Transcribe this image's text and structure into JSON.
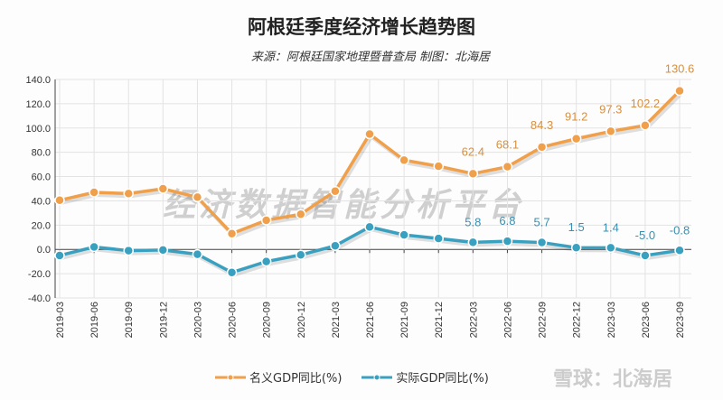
{
  "chart_data": {
    "type": "line",
    "title": "阿根廷季度经济增长趋势图",
    "subtitle": "来源：阿根廷国家地理暨普查局 制图：北海居",
    "categories": [
      "2019-03",
      "2019-06",
      "2019-09",
      "2019-12",
      "2020-03",
      "2020-06",
      "2020-09",
      "2020-12",
      "2021-03",
      "2021-06",
      "2021-09",
      "2021-12",
      "2022-03",
      "2022-06",
      "2022-09",
      "2022-12",
      "2023-03",
      "2023-06",
      "2023-09"
    ],
    "ylim": [
      -40,
      140
    ],
    "yticks": [
      "140.0",
      "120.0",
      "100.0",
      "80.0",
      "60.0",
      "40.0",
      "20.0",
      "0.0",
      "-20.0",
      "-40.0"
    ],
    "grid": true,
    "legend_position": "bottom",
    "series": [
      {
        "name": "名义GDP同比(%)",
        "color": "#f0a04b",
        "values": [
          40.5,
          47,
          46,
          50,
          43,
          13,
          24,
          29,
          48,
          95,
          73.5,
          68.5,
          62.4,
          68.1,
          84.3,
          91.2,
          97.3,
          102.2,
          130.6
        ],
        "labels": [
          "",
          "",
          "",
          "",
          "",
          "",
          "",
          "",
          "",
          "",
          "",
          "",
          "62.4",
          "68.1",
          "84.3",
          "91.2",
          "97.3",
          "102.2",
          "130.6"
        ]
      },
      {
        "name": "实际GDP同比(%)",
        "color": "#3aa0c0",
        "values": [
          -5,
          2,
          -1,
          -0.5,
          -4,
          -19,
          -10,
          -4.5,
          3,
          18.5,
          12,
          9,
          5.8,
          6.8,
          5.7,
          1.5,
          1.4,
          -5.0,
          -0.8
        ],
        "labels": [
          "",
          "",
          "",
          "",
          "",
          "",
          "",
          "",
          "",
          "",
          "",
          "",
          "5.8",
          "6.8",
          "5.7",
          "1.5",
          "1.4",
          "-5.0",
          "-0.8"
        ]
      }
    ]
  },
  "watermark": "经济数据智能分析平台",
  "brand": "雪球：北海居"
}
